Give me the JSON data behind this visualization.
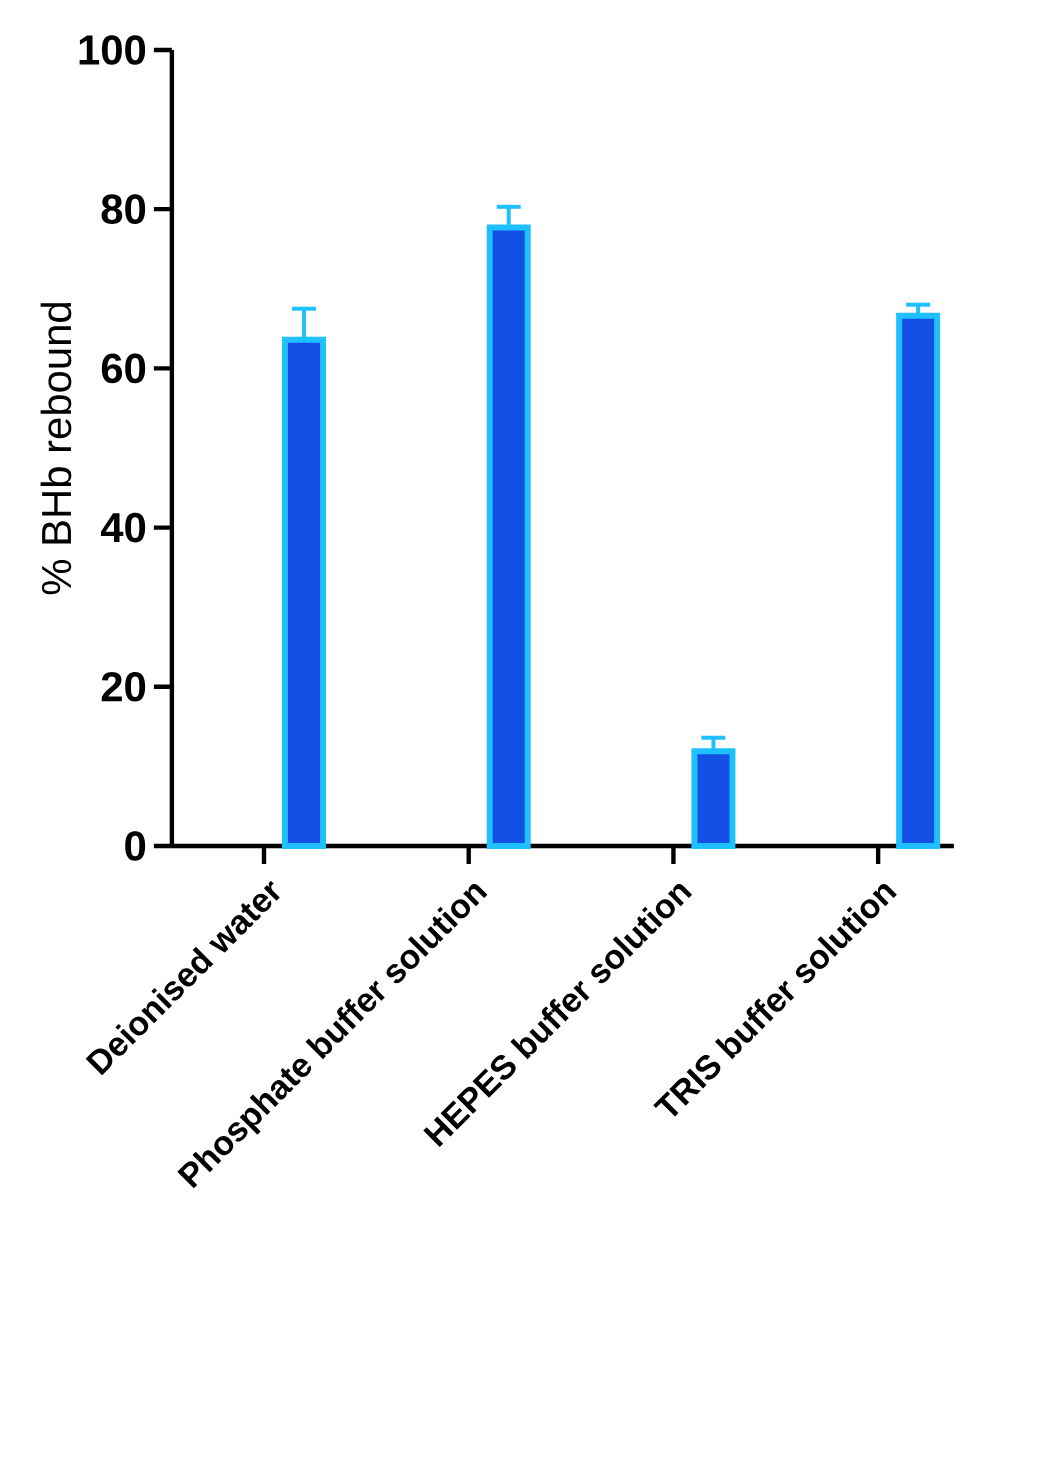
{
  "chart_data": {
    "type": "bar",
    "ylabel": "% BHb rebound",
    "categories": [
      "Deionised water",
      "Phosphate buffer solution",
      "HEPES buffer solution",
      "TRIS buffer solution"
    ],
    "values": [
      63.6,
      77.7,
      11.9,
      66.6
    ],
    "errors": [
      [
        63.6,
        67.5
      ],
      [
        77.7,
        80.3
      ],
      [
        11.9,
        13.6
      ],
      [
        66.6,
        68.0
      ]
    ],
    "color": "#1450e6",
    "ylim": [
      0,
      100
    ],
    "yticks": [
      0,
      20,
      40,
      60,
      80,
      100
    ]
  }
}
